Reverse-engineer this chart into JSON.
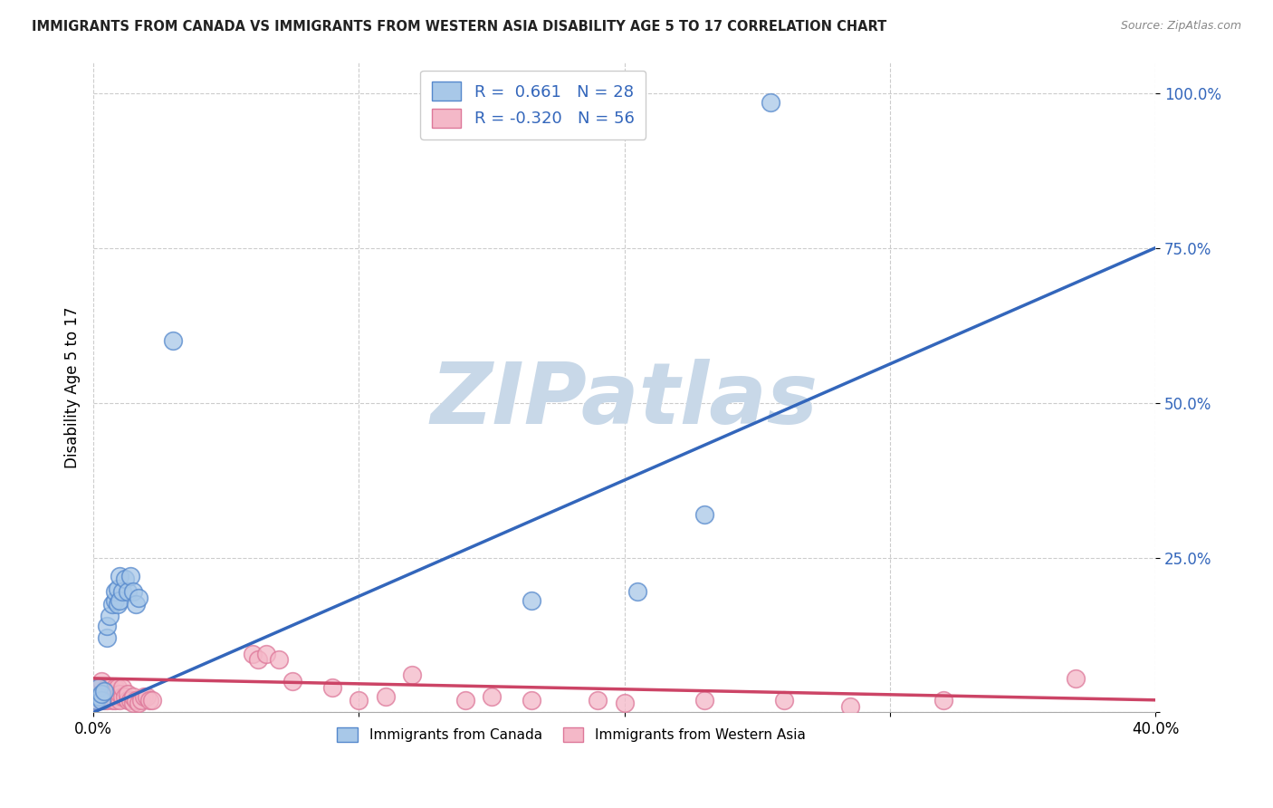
{
  "title": "IMMIGRANTS FROM CANADA VS IMMIGRANTS FROM WESTERN ASIA DISABILITY AGE 5 TO 17 CORRELATION CHART",
  "source": "Source: ZipAtlas.com",
  "ylabel": "Disability Age 5 to 17",
  "xlabel_canada": "Immigrants from Canada",
  "xlabel_western_asia": "Immigrants from Western Asia",
  "x_min": 0.0,
  "x_max": 0.4,
  "y_min": 0.0,
  "y_max": 1.05,
  "R_canada": 0.661,
  "N_canada": 28,
  "R_western_asia": -0.32,
  "N_western_asia": 56,
  "color_canada": "#a8c8e8",
  "color_western_asia": "#f4b8c8",
  "edge_canada": "#5588cc",
  "edge_western_asia": "#dd7799",
  "trendline_canada_color": "#3366bb",
  "trendline_western_asia_color": "#cc4466",
  "trendline_canada_x0": 0.0,
  "trendline_canada_y0": 0.0,
  "trendline_canada_x1": 0.4,
  "trendline_canada_y1": 0.75,
  "trendline_wa_x0": 0.0,
  "trendline_wa_y0": 0.055,
  "trendline_wa_x1": 0.4,
  "trendline_wa_y1": 0.02,
  "watermark": "ZIPatlas",
  "watermark_color": "#c8d8e8",
  "background_color": "#ffffff",
  "canada_x": [
    0.001,
    0.002,
    0.002,
    0.003,
    0.003,
    0.004,
    0.005,
    0.005,
    0.006,
    0.007,
    0.008,
    0.008,
    0.009,
    0.009,
    0.01,
    0.01,
    0.011,
    0.012,
    0.013,
    0.014,
    0.015,
    0.016,
    0.017,
    0.03,
    0.165,
    0.205,
    0.23,
    0.255
  ],
  "canada_y": [
    0.02,
    0.025,
    0.04,
    0.02,
    0.03,
    0.035,
    0.12,
    0.14,
    0.155,
    0.175,
    0.18,
    0.195,
    0.175,
    0.2,
    0.18,
    0.22,
    0.195,
    0.215,
    0.195,
    0.22,
    0.195,
    0.175,
    0.185,
    0.6,
    0.18,
    0.195,
    0.32,
    0.985
  ],
  "western_asia_x": [
    0.001,
    0.001,
    0.002,
    0.002,
    0.003,
    0.003,
    0.003,
    0.004,
    0.004,
    0.005,
    0.005,
    0.005,
    0.006,
    0.006,
    0.007,
    0.007,
    0.008,
    0.008,
    0.009,
    0.009,
    0.01,
    0.01,
    0.011,
    0.011,
    0.012,
    0.013,
    0.013,
    0.014,
    0.015,
    0.015,
    0.016,
    0.017,
    0.018,
    0.019,
    0.02,
    0.021,
    0.022,
    0.06,
    0.062,
    0.065,
    0.07,
    0.075,
    0.09,
    0.1,
    0.11,
    0.12,
    0.14,
    0.15,
    0.165,
    0.19,
    0.2,
    0.23,
    0.26,
    0.285,
    0.32,
    0.37
  ],
  "western_asia_y": [
    0.02,
    0.04,
    0.025,
    0.04,
    0.02,
    0.03,
    0.05,
    0.02,
    0.03,
    0.02,
    0.03,
    0.04,
    0.025,
    0.04,
    0.02,
    0.03,
    0.02,
    0.04,
    0.025,
    0.04,
    0.02,
    0.03,
    0.025,
    0.04,
    0.025,
    0.02,
    0.03,
    0.02,
    0.015,
    0.025,
    0.02,
    0.015,
    0.02,
    0.025,
    0.025,
    0.02,
    0.02,
    0.095,
    0.085,
    0.095,
    0.085,
    0.05,
    0.04,
    0.02,
    0.025,
    0.06,
    0.02,
    0.025,
    0.02,
    0.02,
    0.015,
    0.02,
    0.02,
    0.01,
    0.02,
    0.055
  ]
}
